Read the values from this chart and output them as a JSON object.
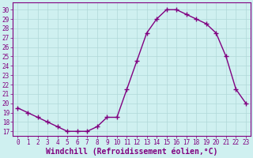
{
  "x": [
    0,
    1,
    2,
    3,
    4,
    5,
    6,
    7,
    8,
    9,
    10,
    11,
    12,
    13,
    14,
    15,
    16,
    17,
    18,
    19,
    20,
    21,
    22,
    23
  ],
  "y": [
    19.5,
    19.0,
    18.5,
    18.0,
    17.5,
    17.0,
    17.0,
    17.0,
    17.5,
    18.5,
    18.5,
    21.5,
    24.5,
    27.5,
    29.0,
    30.0,
    30.0,
    29.5,
    29.0,
    28.5,
    27.5,
    25.0,
    21.5,
    20.0
  ],
  "line_color": "#800080",
  "marker": "+",
  "marker_size": 4,
  "bg_color": "#cff0f0",
  "grid_color": "#b0d8d8",
  "xlabel": "Windchill (Refroidissement éolien,°C)",
  "ylabel": "",
  "title": "",
  "xlim": [
    -0.5,
    23.5
  ],
  "ylim": [
    16.5,
    30.8
  ],
  "yticks": [
    17,
    18,
    19,
    20,
    21,
    22,
    23,
    24,
    25,
    26,
    27,
    28,
    29,
    30
  ],
  "xticks": [
    0,
    1,
    2,
    3,
    4,
    5,
    6,
    7,
    8,
    9,
    10,
    11,
    12,
    13,
    14,
    15,
    16,
    17,
    18,
    19,
    20,
    21,
    22,
    23
  ],
  "tick_fontsize": 5.5,
  "xlabel_fontsize": 7,
  "linewidth": 1.0,
  "spine_color": "#800080",
  "axis_color": "#800080"
}
